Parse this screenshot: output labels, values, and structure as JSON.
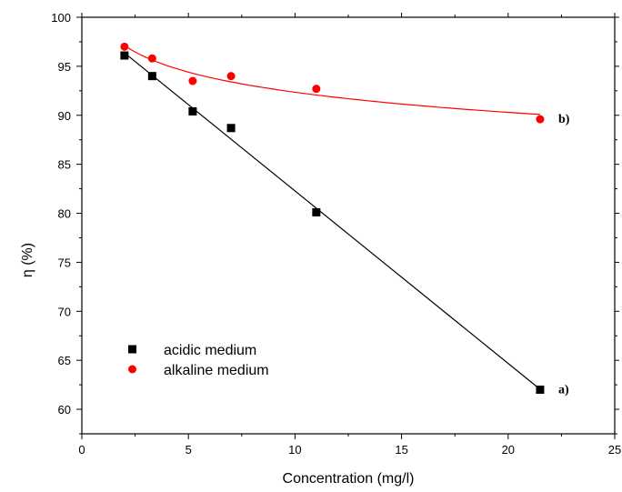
{
  "chart_data": {
    "type": "scatter",
    "xlabel": "Concentration (mg/l)",
    "ylabel": "η (%)",
    "xlim": [
      0,
      25
    ],
    "ylim": [
      57.5,
      100
    ],
    "xticks": [
      0,
      5,
      10,
      15,
      20,
      25
    ],
    "yticks": [
      60,
      65,
      70,
      75,
      80,
      85,
      90,
      95,
      100
    ],
    "grid": false,
    "legend_position": "bottom-left",
    "series": [
      {
        "name": "acidic medium",
        "label": "a)",
        "marker": "square",
        "color": "#000000",
        "x": [
          2.0,
          3.3,
          5.2,
          7.0,
          11.0,
          21.5
        ],
        "y": [
          96.1,
          94.0,
          90.4,
          88.7,
          80.1,
          62.0
        ],
        "fit": "linear"
      },
      {
        "name": "alkaline medium",
        "label": "b)",
        "marker": "circle",
        "color": "#ff0000",
        "x": [
          2.0,
          3.3,
          5.2,
          7.0,
          11.0,
          21.5
        ],
        "y": [
          97.0,
          95.8,
          93.5,
          94.0,
          92.7,
          89.6
        ],
        "fit": "curve"
      }
    ]
  }
}
